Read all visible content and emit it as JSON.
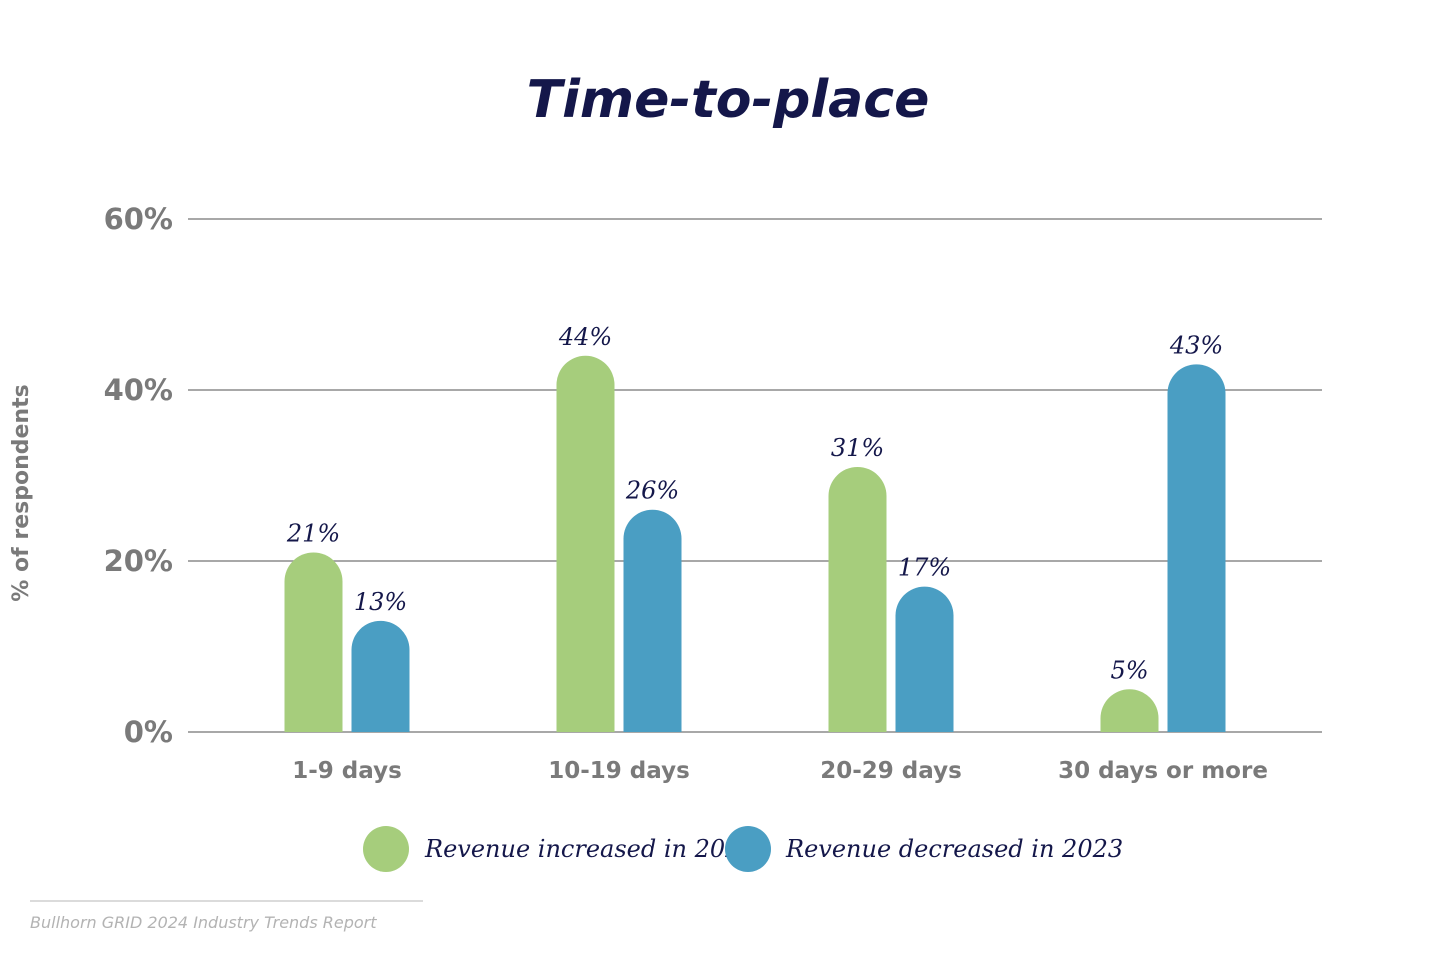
{
  "chart_data": {
    "type": "bar",
    "title": "Time-to-place",
    "ylabel": "% of respondents",
    "xlabel": "",
    "ylim": [
      0,
      60
    ],
    "yticks": [
      0,
      20,
      40,
      60
    ],
    "ytick_labels": [
      "0%",
      "20%",
      "40%",
      "60%"
    ],
    "categories": [
      "1-9 days",
      "10-19 days",
      "20-29 days",
      "30 days or more"
    ],
    "series": [
      {
        "name": "Revenue increased in 2023",
        "color": "#a6cd7c",
        "values": [
          21,
          44,
          31,
          5
        ],
        "labels": [
          "21%",
          "44%",
          "31%",
          "5%"
        ]
      },
      {
        "name": "Revenue decreased in 2023",
        "color": "#4a9ec3",
        "values": [
          13,
          26,
          17,
          43
        ],
        "labels": [
          "13%",
          "26%",
          "17%",
          "43%"
        ]
      }
    ],
    "grid": true,
    "legend_position": "bottom"
  },
  "footer": {
    "source": "Bullhorn GRID 2024 Industry Trends Report"
  }
}
